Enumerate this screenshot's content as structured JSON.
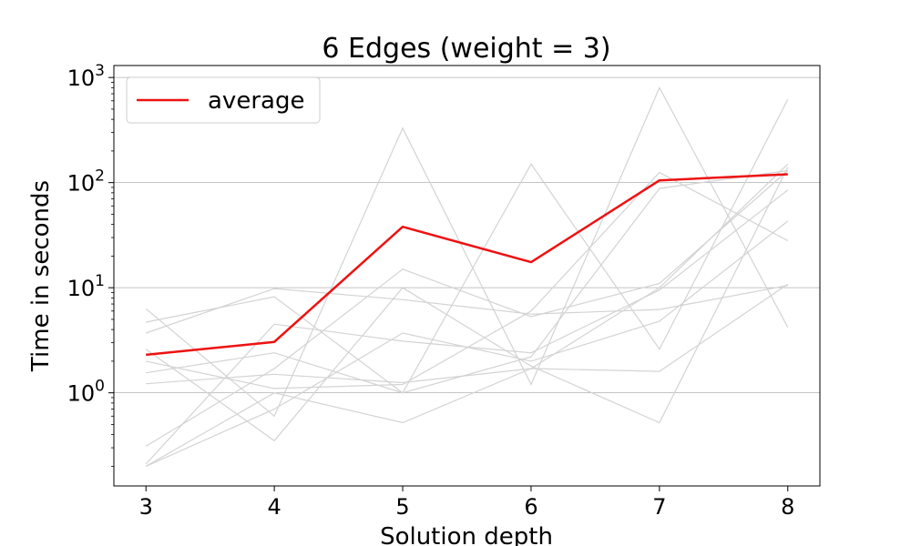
{
  "chart_data": {
    "type": "line",
    "title": "6 Edges (weight = 3)",
    "xlabel": "Solution depth",
    "ylabel": "Time in seconds",
    "y_scale": "log",
    "ylim": [
      0.13,
      1300
    ],
    "xlim": [
      2.75,
      8.25
    ],
    "x": [
      3,
      4,
      5,
      6,
      7,
      8
    ],
    "x_tick_labels": [
      "3",
      "4",
      "5",
      "6",
      "7",
      "8"
    ],
    "y_ticks": [
      {
        "base": "10",
        "exp": "0",
        "value": 1
      },
      {
        "base": "10",
        "exp": "1",
        "value": 10
      },
      {
        "base": "10",
        "exp": "2",
        "value": 100
      },
      {
        "base": "10",
        "exp": "3",
        "value": 1000
      }
    ],
    "grid": "horizontal",
    "legend": {
      "placement": "top-left",
      "entries": [
        "average"
      ]
    },
    "series": [
      {
        "name": "average",
        "color": "#ee1111",
        "values": [
          2.3,
          3.05,
          38,
          17.5,
          105,
          120
        ]
      }
    ],
    "background_series": {
      "color": "#d3d3d3",
      "lines": [
        [
          6.3,
          0.6,
          330,
          1.2,
          800,
          4.2
        ],
        [
          4.7,
          8.2,
          1.0,
          150,
          2.6,
          620
        ],
        [
          3.7,
          9.8,
          7.7,
          5.6,
          6.2,
          10.5
        ],
        [
          2.6,
          0.35,
          10,
          1.8,
          0.52,
          140
        ],
        [
          2.0,
          1.1,
          1.2,
          6.0,
          125,
          28
        ],
        [
          1.55,
          2.4,
          1.0,
          2.2,
          88,
          130
        ],
        [
          1.22,
          1.5,
          1.25,
          1.7,
          1.6,
          10.8
        ],
        [
          0.31,
          1.7,
          15,
          5.3,
          11,
          130
        ],
        [
          0.2,
          0.7,
          3.7,
          2.0,
          4.8,
          43
        ],
        [
          0.21,
          4.5,
          3.1,
          2.4,
          9.5,
          85
        ],
        [
          0.2,
          1.0,
          0.52,
          1.7,
          10,
          150
        ]
      ]
    }
  }
}
